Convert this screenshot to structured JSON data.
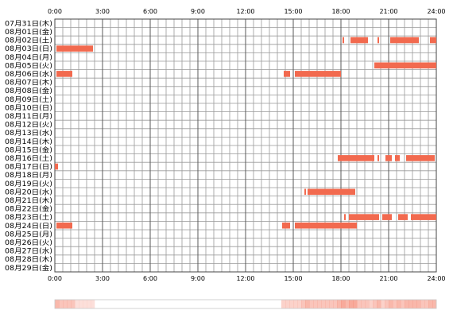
{
  "chart_data": {
    "type": "heatmap",
    "title": "",
    "xlabel": "",
    "ylabel": "",
    "x_unit": "hour",
    "xlim": [
      0,
      24
    ],
    "x_ticks": [
      "0:00",
      "3:00",
      "6:00",
      "9:00",
      "12:00",
      "15:00",
      "18:00",
      "21:00",
      "24:00"
    ],
    "grid": true,
    "bar_color": "#f26a4f",
    "rows": [
      {
        "label": "07月31日(木)",
        "segments": []
      },
      {
        "label": "08月01日(金)",
        "segments": []
      },
      {
        "label": "08月02日(土)",
        "segments": [
          [
            18.1,
            18.2
          ],
          [
            18.6,
            19.7
          ],
          [
            20.3,
            20.4
          ],
          [
            21.1,
            22.9
          ],
          [
            23.6,
            24.0
          ]
        ]
      },
      {
        "label": "08月03日(日)",
        "segments": [
          [
            0.1,
            2.4
          ]
        ]
      },
      {
        "label": "08月04日(月)",
        "segments": []
      },
      {
        "label": "08月05日(火)",
        "segments": [
          [
            20.1,
            24.0
          ]
        ]
      },
      {
        "label": "08月06日(水)",
        "segments": [
          [
            0.1,
            1.1
          ],
          [
            14.4,
            14.8
          ],
          [
            15.1,
            18.0
          ]
        ]
      },
      {
        "label": "08月07日(木)",
        "segments": []
      },
      {
        "label": "08月08日(金)",
        "segments": []
      },
      {
        "label": "08月09日(土)",
        "segments": []
      },
      {
        "label": "08月10日(日)",
        "segments": []
      },
      {
        "label": "08月11日(月)",
        "segments": []
      },
      {
        "label": "08月12日(火)",
        "segments": []
      },
      {
        "label": "08月13日(水)",
        "segments": []
      },
      {
        "label": "08月14日(木)",
        "segments": []
      },
      {
        "label": "08月15日(金)",
        "segments": []
      },
      {
        "label": "08月16日(土)",
        "segments": [
          [
            17.8,
            20.1
          ],
          [
            20.3,
            20.4
          ],
          [
            20.8,
            21.2
          ],
          [
            21.4,
            21.7
          ],
          [
            22.1,
            23.9
          ]
        ]
      },
      {
        "label": "08月17日(日)",
        "segments": [
          [
            0.0,
            0.2
          ]
        ]
      },
      {
        "label": "08月18日(月)",
        "segments": []
      },
      {
        "label": "08月19日(火)",
        "segments": []
      },
      {
        "label": "08月20日(水)",
        "segments": [
          [
            15.7,
            15.8
          ],
          [
            15.9,
            18.9
          ]
        ]
      },
      {
        "label": "08月21日(木)",
        "segments": []
      },
      {
        "label": "08月22日(金)",
        "segments": []
      },
      {
        "label": "08月23日(土)",
        "segments": [
          [
            18.2,
            18.3
          ],
          [
            18.5,
            20.4
          ],
          [
            20.6,
            21.2
          ],
          [
            21.6,
            22.2
          ],
          [
            22.4,
            24.0
          ]
        ]
      },
      {
        "label": "08月24日(日)",
        "segments": [
          [
            0.1,
            1.1
          ],
          [
            14.3,
            14.8
          ],
          [
            15.1,
            19.0
          ]
        ]
      },
      {
        "label": "08月25日(月)",
        "segments": []
      },
      {
        "label": "08月26日(火)",
        "segments": []
      },
      {
        "label": "08月27日(水)",
        "segments": []
      },
      {
        "label": "08月28日(木)",
        "segments": []
      },
      {
        "label": "08月29日(金)",
        "segments": []
      }
    ]
  }
}
